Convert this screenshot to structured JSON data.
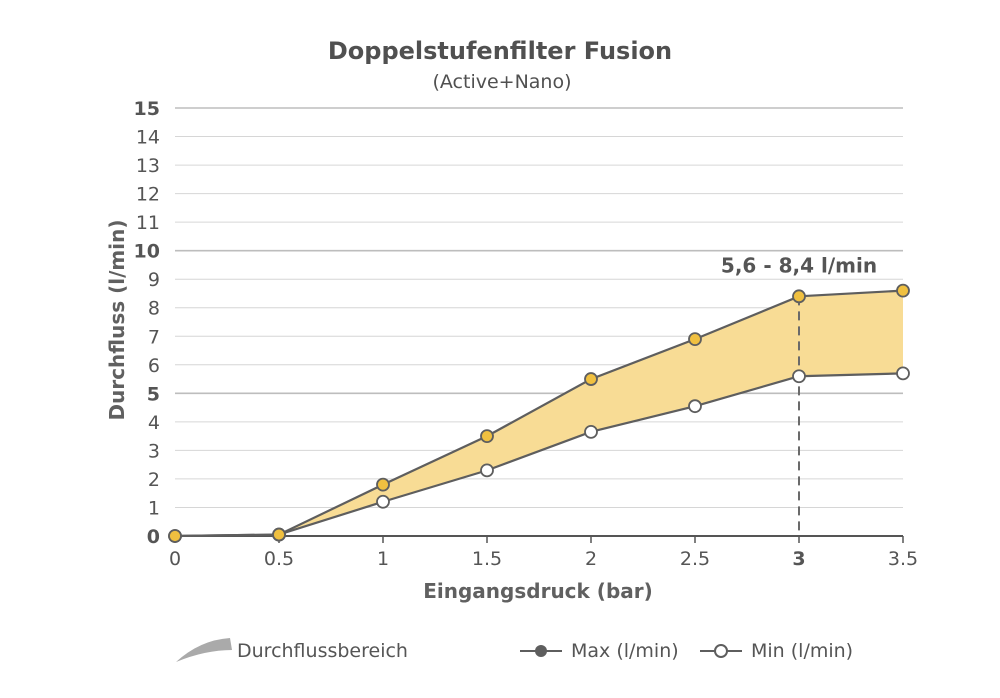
{
  "chart_data": {
    "type": "line",
    "title": "Doppelstufenfilter Fusion",
    "subtitle": "(Active+Nano)",
    "xlabel": "Eingangsdruck (bar)",
    "ylabel": "Durchfluss (l/min)",
    "x": [
      0,
      0.5,
      1,
      1.5,
      2,
      2.5,
      3,
      3.5
    ],
    "xticks": [
      "0",
      "0.5",
      "1",
      "1.5",
      "2",
      "2.5",
      "3",
      "3.5"
    ],
    "xlim": [
      0,
      3.5
    ],
    "ylim": [
      0,
      15
    ],
    "yticks": [
      "0",
      "1",
      "2",
      "3",
      "4",
      "5",
      "6",
      "7",
      "8",
      "9",
      "10",
      "11",
      "12",
      "13",
      "14",
      "15"
    ],
    "bold_yticks": [
      0,
      5,
      10,
      15
    ],
    "bold_xticks": [
      3
    ],
    "grid": true,
    "series": [
      {
        "name": "Max (l/min)",
        "values": [
          0,
          0.05,
          1.8,
          3.5,
          5.5,
          6.9,
          8.4,
          8.6
        ],
        "marker_fill": "#f0c040"
      },
      {
        "name": "Min (l/min)",
        "values": [
          0,
          0.05,
          1.2,
          2.3,
          3.65,
          4.55,
          5.6,
          5.7
        ],
        "marker_fill": "#ffffff"
      }
    ],
    "band_name": "Durchflussbereich",
    "band_color": "#f8dc95",
    "line_color": "#5e5e5e",
    "annotation": {
      "text": "5,6 - 8,4 l/min",
      "x": 3
    },
    "legend_position": "bottom"
  }
}
